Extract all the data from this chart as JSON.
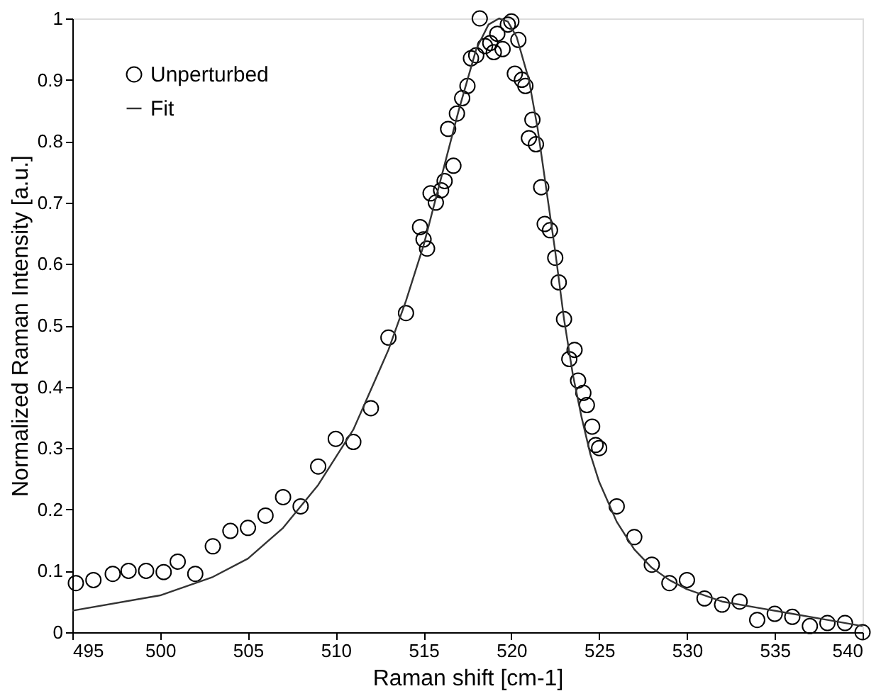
{
  "chart_data": {
    "type": "scatter",
    "xlabel": "Raman shift [cm-1]",
    "ylabel": "Normalized Raman Intensity [a.u.]",
    "xlim": [
      495,
      540
    ],
    "xticks": [
      495,
      500,
      505,
      510,
      515,
      520,
      525,
      530,
      535,
      540
    ],
    "ylim": [
      0,
      1
    ],
    "yticks": [
      0,
      0.1,
      0.2,
      0.3,
      0.4,
      0.5,
      0.6,
      0.7,
      0.8,
      0.9,
      1
    ],
    "grid": false,
    "legend": "top left",
    "series": [
      {
        "name": "Unperturbed",
        "type": "scatter",
        "marker": "circle",
        "color": "#000000",
        "x": [
          495.2,
          496.2,
          497.3,
          498.2,
          499.2,
          500.2,
          501,
          502,
          503,
          504,
          505,
          506,
          507,
          508,
          509,
          510,
          511,
          512,
          513,
          514,
          514.8,
          515,
          515.2,
          515.4,
          515.7,
          516,
          516.2,
          516.4,
          516.7,
          516.9,
          517.2,
          517.5,
          517.7,
          518,
          518.2,
          518.5,
          518.8,
          519,
          519.2,
          519.5,
          519.8,
          520,
          520.2,
          520.4,
          520.6,
          520.8,
          521,
          521.2,
          521.4,
          521.7,
          521.9,
          522.2,
          522.5,
          522.7,
          523,
          523.3,
          523.6,
          523.8,
          524.1,
          524.3,
          524.6,
          524.8,
          525,
          526,
          527,
          528,
          529,
          530,
          531,
          532,
          533,
          534,
          535,
          536,
          537,
          538,
          539,
          540
        ],
        "values": [
          0.08,
          0.085,
          0.095,
          0.1,
          0.1,
          0.098,
          0.115,
          0.095,
          0.14,
          0.165,
          0.17,
          0.19,
          0.22,
          0.205,
          0.27,
          0.315,
          0.31,
          0.365,
          0.48,
          0.52,
          0.66,
          0.64,
          0.625,
          0.715,
          0.7,
          0.72,
          0.735,
          0.82,
          0.76,
          0.845,
          0.87,
          0.89,
          0.935,
          0.94,
          1.0,
          0.955,
          0.96,
          0.945,
          0.975,
          0.95,
          0.99,
          0.995,
          0.91,
          0.965,
          0.9,
          0.89,
          0.805,
          0.835,
          0.795,
          0.725,
          0.665,
          0.655,
          0.61,
          0.57,
          0.51,
          0.445,
          0.46,
          0.41,
          0.39,
          0.37,
          0.335,
          0.305,
          0.3,
          0.205,
          0.155,
          0.11,
          0.08,
          0.085,
          0.055,
          0.045,
          0.05,
          0.02,
          0.03,
          0.025,
          0.01,
          0.015,
          0.015,
          0.0
        ]
      },
      {
        "name": "Fit",
        "type": "line",
        "line_style": "solid",
        "color": "#333333",
        "x": [
          495,
          500,
          503,
          505,
          507,
          509,
          511,
          513,
          514,
          515,
          516,
          517,
          518,
          518.7,
          519.3,
          519.8,
          520.3,
          521,
          521.5,
          522,
          522.5,
          523,
          523.5,
          524,
          524.5,
          525,
          526,
          527,
          528,
          529,
          530,
          532,
          534,
          536,
          538,
          540
        ],
        "values": [
          0.035,
          0.06,
          0.09,
          0.12,
          0.17,
          0.24,
          0.33,
          0.46,
          0.54,
          0.63,
          0.74,
          0.85,
          0.95,
          0.99,
          1.0,
          0.995,
          0.97,
          0.9,
          0.82,
          0.72,
          0.62,
          0.51,
          0.42,
          0.35,
          0.29,
          0.245,
          0.18,
          0.135,
          0.105,
          0.085,
          0.07,
          0.05,
          0.04,
          0.03,
          0.02,
          0.01
        ]
      }
    ]
  }
}
